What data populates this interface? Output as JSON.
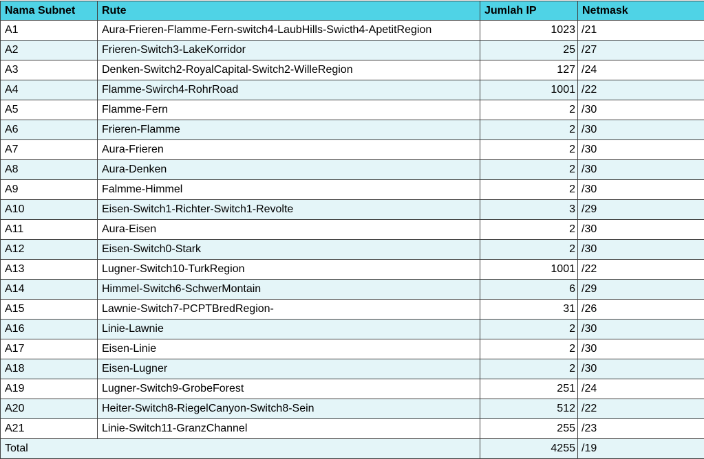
{
  "headers": [
    "Nama Subnet",
    "Rute",
    "Jumlah IP",
    "Netmask"
  ],
  "rows": [
    {
      "subnet": "A1",
      "route": "Aura-Frieren-Flamme-Fern-switch4-LaubHills-Swicth4-ApetitRegion",
      "ip": "1023",
      "mask": "/21"
    },
    {
      "subnet": "A2",
      "route": "Frieren-Switch3-LakeKorridor",
      "ip": "25",
      "mask": "/27"
    },
    {
      "subnet": "A3",
      "route": "Denken-Switch2-RoyalCapital-Switch2-WilleRegion",
      "ip": "127",
      "mask": "/24"
    },
    {
      "subnet": "A4",
      "route": "Flamme-Swirch4-RohrRoad",
      "ip": "1001",
      "mask": "/22"
    },
    {
      "subnet": "A5",
      "route": "Flamme-Fern",
      "ip": "2",
      "mask": "/30"
    },
    {
      "subnet": "A6",
      "route": "Frieren-Flamme",
      "ip": "2",
      "mask": "/30"
    },
    {
      "subnet": "A7",
      "route": "Aura-Frieren",
      "ip": "2",
      "mask": "/30"
    },
    {
      "subnet": "A8",
      "route": "Aura-Denken",
      "ip": "2",
      "mask": "/30"
    },
    {
      "subnet": "A9",
      "route": "Falmme-Himmel",
      "ip": "2",
      "mask": "/30"
    },
    {
      "subnet": "A10",
      "route": "Eisen-Switch1-Richter-Switch1-Revolte",
      "ip": "3",
      "mask": "/29"
    },
    {
      "subnet": "A11",
      "route": "Aura-Eisen",
      "ip": "2",
      "mask": "/30"
    },
    {
      "subnet": "A12",
      "route": "Eisen-Switch0-Stark",
      "ip": "2",
      "mask": "/30"
    },
    {
      "subnet": "A13",
      "route": "Lugner-Switch10-TurkRegion",
      "ip": "1001",
      "mask": "/22"
    },
    {
      "subnet": "A14",
      "route": "Himmel-Switch6-SchwerMontain",
      "ip": "6",
      "mask": "/29"
    },
    {
      "subnet": "A15",
      "route": "Lawnie-Switch7-PCPTBredRegion-",
      "ip": "31",
      "mask": "/26"
    },
    {
      "subnet": "A16",
      "route": "Linie-Lawnie",
      "ip": "2",
      "mask": "/30"
    },
    {
      "subnet": "A17",
      "route": "Eisen-Linie",
      "ip": "2",
      "mask": "/30"
    },
    {
      "subnet": "A18",
      "route": "Eisen-Lugner",
      "ip": "2",
      "mask": "/30"
    },
    {
      "subnet": "A19",
      "route": "Lugner-Switch9-GrobeForest",
      "ip": "251",
      "mask": "/24"
    },
    {
      "subnet": "A20",
      "route": "Heiter-Switch8-RiegelCanyon-Switch8-Sein",
      "ip": "512",
      "mask": "/22"
    },
    {
      "subnet": "A21",
      "route": "Linie-Switch11-GranzChannel",
      "ip": "255",
      "mask": "/23"
    }
  ],
  "total": {
    "label": "Total",
    "ip": "4255",
    "mask": "/19"
  },
  "colors": {
    "header_bg": "#4fd3e6",
    "stripe_bg": "#e4f5f8",
    "border": "#3f3f3f"
  }
}
